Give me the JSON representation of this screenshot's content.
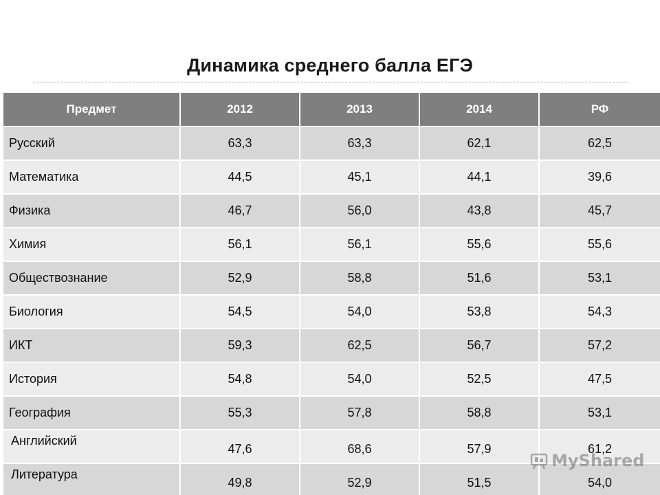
{
  "title": "Динамика среднего балла ЕГЭ",
  "table": {
    "headers": [
      "Предмет",
      "2012",
      "2013",
      "2014",
      "РФ"
    ],
    "rows": [
      [
        "Русский",
        "63,3",
        "63,3",
        "62,1",
        "62,5"
      ],
      [
        "Математика",
        "44,5",
        "45,1",
        "44,1",
        "39,6"
      ],
      [
        "Физика",
        "46,7",
        "56,0",
        "43,8",
        "45,7"
      ],
      [
        "Химия",
        "56,1",
        "56,1",
        "55,6",
        "55,6"
      ],
      [
        "Обществознание",
        "52,9",
        "58,8",
        "51,6",
        "53,1"
      ],
      [
        "Биология",
        "54,5",
        "54,0",
        "53,8",
        "54,3"
      ],
      [
        "ИКТ",
        "59,3",
        "62,5",
        "56,7",
        "57,2"
      ],
      [
        "История",
        "54,8",
        "54,0",
        "52,5",
        "47,5"
      ],
      [
        "География",
        "55,3",
        "57,8",
        "58,8",
        "53,1"
      ],
      [
        "Английский",
        "47,6",
        "68,6",
        "57,9",
        "61,2"
      ],
      [
        "Литература",
        "49,8",
        "52,9",
        "51,5",
        "54,0"
      ]
    ]
  },
  "watermark": {
    "text": "MyShared",
    "icon": "presentation-board-icon"
  },
  "colors": {
    "header_bg": "#7f7f7f",
    "row_dark": "#d7d7d7",
    "row_light": "#ececec"
  }
}
